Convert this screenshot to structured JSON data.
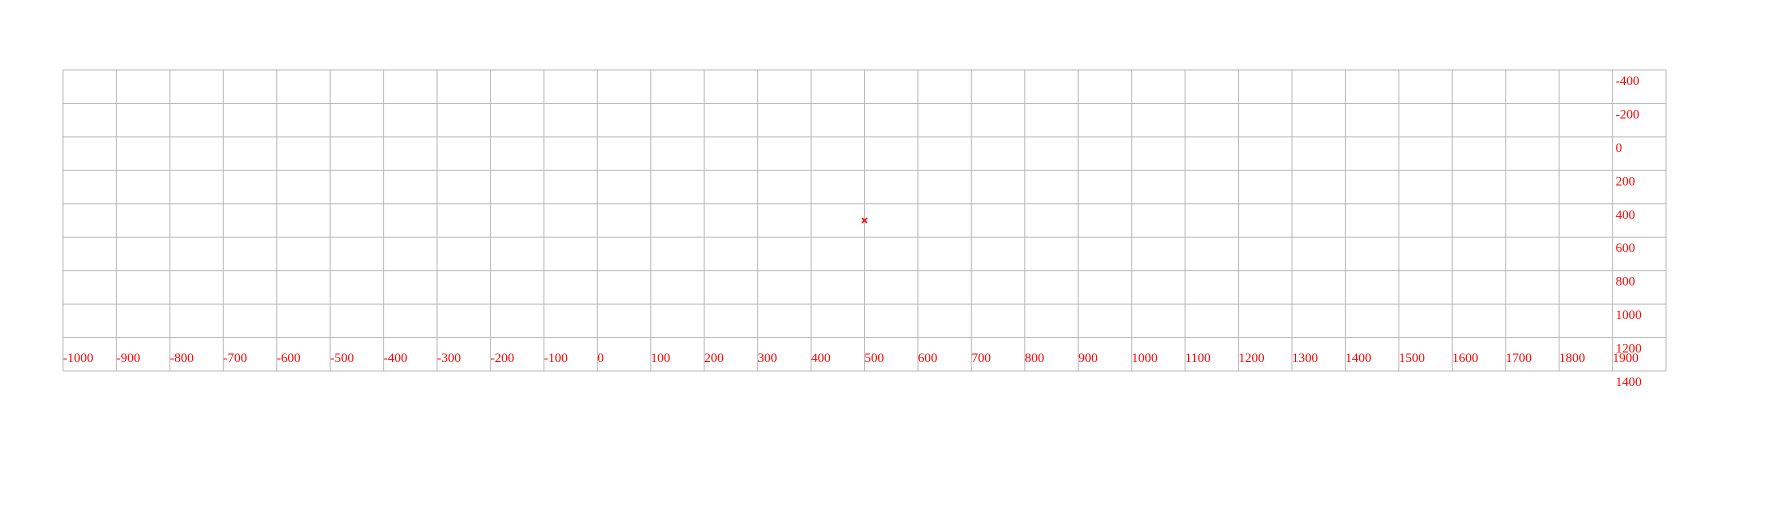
{
  "chart_data": {
    "type": "scatter",
    "title": "",
    "xlabel": "",
    "ylabel": "",
    "xlim": [
      -1000,
      2000
    ],
    "ylim": [
      -400,
      1400
    ],
    "y_inverted": true,
    "x_ticks": [
      "-1000",
      "-900",
      "-800",
      "-700",
      "-600",
      "-500",
      "-400",
      "-300",
      "-200",
      "-100",
      "0",
      "100",
      "200",
      "300",
      "400",
      "500",
      "600",
      "700",
      "800",
      "900",
      "1000",
      "1100",
      "1200",
      "1300",
      "1400",
      "1500",
      "1600",
      "1700",
      "1800",
      "1900"
    ],
    "y_ticks": [
      "-400",
      "-200",
      "0",
      "200",
      "400",
      "600",
      "800",
      "1000",
      "1200",
      "1400"
    ],
    "grid": true,
    "series": [
      {
        "marker": "x",
        "color": "#ff0000",
        "points": [
          {
            "x": 500,
            "y": 500
          }
        ]
      }
    ],
    "colors": {
      "grid": "#bbbbbb",
      "label": "#ff0000"
    }
  }
}
